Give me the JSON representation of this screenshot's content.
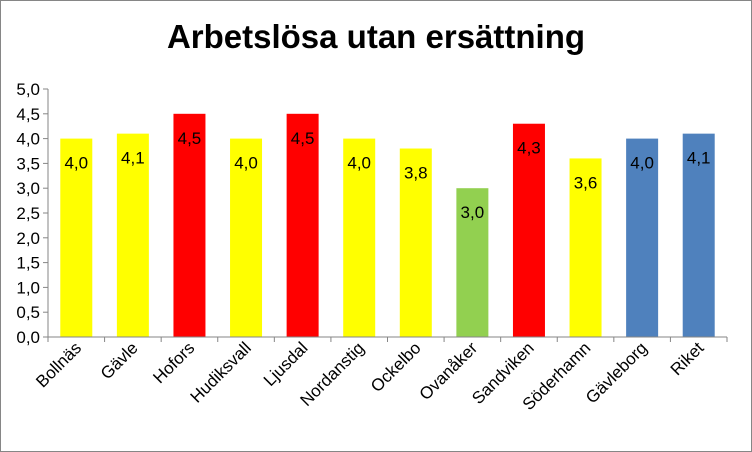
{
  "chart_data": {
    "type": "bar",
    "title": "Arbetslösa utan ersättning",
    "xlabel": "",
    "ylabel": "",
    "ylim": [
      0,
      5
    ],
    "ytick_step": 0.5,
    "yticks": [
      "0,0",
      "0,5",
      "1,0",
      "1,5",
      "2,0",
      "2,5",
      "3,0",
      "3,5",
      "4,0",
      "4,5",
      "5,0"
    ],
    "grid": false,
    "legend": "none",
    "categories": [
      "Bollnäs",
      "Gävle",
      "Hofors",
      "Hudiksvall",
      "Ljusdal",
      "Nordanstig",
      "Ockelbo",
      "Ovanåker",
      "Sandviken",
      "Söderhamn",
      "Gävleborg",
      "Riket"
    ],
    "values": [
      4.0,
      4.1,
      4.5,
      4.0,
      4.5,
      4.0,
      3.8,
      3.0,
      4.3,
      3.6,
      4.0,
      4.1
    ],
    "data_labels": [
      "4,0",
      "4,1",
      "4,5",
      "4,0",
      "4,5",
      "4,0",
      "3,8",
      "3,0",
      "4,3",
      "3,6",
      "4,0",
      "4,1"
    ],
    "bar_colors": [
      "#ffff00",
      "#ffff00",
      "#ff0000",
      "#ffff00",
      "#ff0000",
      "#ffff00",
      "#ffff00",
      "#92d050",
      "#ff0000",
      "#ffff00",
      "#4f81bd",
      "#4f81bd"
    ]
  }
}
